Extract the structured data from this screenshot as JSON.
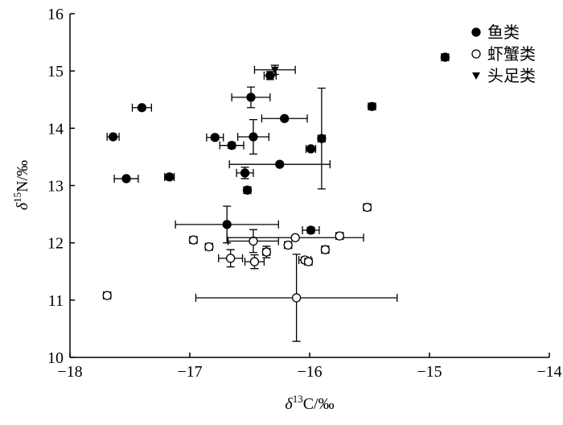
{
  "chart_data": {
    "type": "scatter",
    "x_label": {
      "symbol": "δ",
      "superscript": "13",
      "text": "C/‰"
    },
    "y_label": {
      "symbol": "δ",
      "superscript": "15",
      "text": "N/‰"
    },
    "xlim": [
      -18,
      -14
    ],
    "xticks": [
      {
        "value": -18,
        "label": "−18"
      },
      {
        "value": -17,
        "label": "−17"
      },
      {
        "value": -16,
        "label": "−16"
      },
      {
        "value": -15,
        "label": "−15"
      },
      {
        "value": -14,
        "label": "−14"
      }
    ],
    "ylim": [
      10,
      16
    ],
    "yticks": [
      10,
      11,
      12,
      13,
      14,
      15,
      16
    ],
    "legend": "top-right",
    "series": [
      {
        "name": "鱼类",
        "marker": "filled-circle",
        "color": "#000000",
        "x": [
          -17.4,
          -17.64,
          -17.53,
          -17.17,
          -16.79,
          -16.65,
          -16.47,
          -16.54,
          -16.52,
          -16.33,
          -16.49,
          -16.21,
          -16.25,
          -15.99,
          -15.9,
          -15.48,
          -14.87,
          -16.69,
          -15.99
        ],
        "y": [
          14.36,
          13.85,
          13.12,
          13.15,
          13.84,
          13.7,
          13.85,
          13.22,
          12.92,
          14.92,
          14.54,
          14.17,
          13.37,
          13.64,
          13.82,
          14.38,
          15.24,
          12.32,
          12.22
        ],
        "xerr": [
          0.08,
          0.05,
          0.1,
          0.04,
          0.07,
          0.1,
          0.13,
          0.07,
          0.03,
          0.05,
          0.16,
          0.19,
          0.42,
          0.04,
          0.03,
          0.03,
          0.03,
          0.43,
          0.07
        ],
        "yerr": [
          0.03,
          0.03,
          0.03,
          0.05,
          0.04,
          0.05,
          0.3,
          0.1,
          0.05,
          0.07,
          0.18,
          0.03,
          0.03,
          0.04,
          0.88,
          0.05,
          0.05,
          0.32,
          0.05
        ]
      },
      {
        "name": "虾蟹类",
        "marker": "open-circle",
        "color": "#000000",
        "x": [
          -17.69,
          -16.97,
          -16.84,
          -16.66,
          -16.47,
          -16.46,
          -16.36,
          -16.18,
          -16.12,
          -16.11,
          -16.04,
          -16.01,
          -15.87,
          -15.75,
          -15.52
        ],
        "y": [
          11.08,
          12.05,
          11.93,
          11.73,
          12.03,
          11.67,
          11.84,
          11.96,
          12.09,
          11.04,
          11.7,
          11.67,
          11.88,
          12.12,
          12.62
        ],
        "xerr": [
          0.03,
          0.03,
          0.03,
          0.1,
          0.21,
          0.08,
          0.03,
          0.03,
          0.57,
          0.84,
          0.05,
          0.03,
          0.03,
          0.03,
          0.03
        ],
        "yerr": [
          0.04,
          0.05,
          0.04,
          0.15,
          0.2,
          0.12,
          0.1,
          0.04,
          0.04,
          0.76,
          0.05,
          0.05,
          0.06,
          0.05,
          0.05
        ]
      },
      {
        "name": "头足类",
        "marker": "filled-triangle-down",
        "color": "#000000",
        "x": [
          -16.29
        ],
        "y": [
          15.02
        ],
        "xerr": [
          0.17
        ],
        "yerr": [
          0.08
        ]
      }
    ]
  }
}
